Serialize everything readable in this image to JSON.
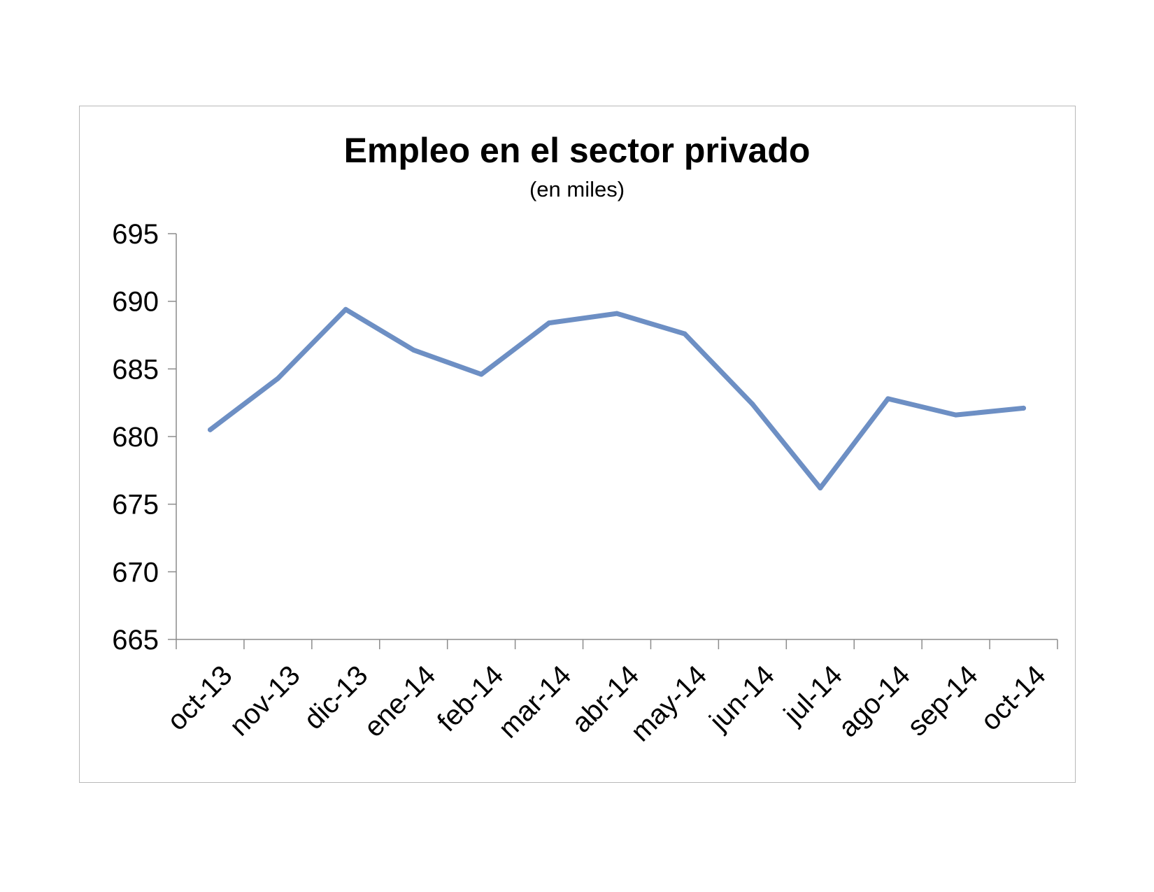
{
  "chart_data": {
    "type": "line",
    "title": "Empleo en el sector privado",
    "subtitle": "(en miles)",
    "xlabel": "",
    "ylabel": "",
    "categories": [
      "oct-13",
      "nov-13",
      "dic-13",
      "ene-14",
      "feb-14",
      "mar-14",
      "abr-14",
      "may-14",
      "jun-14",
      "jul-14",
      "ago-14",
      "sep-14",
      "oct-14"
    ],
    "series": [
      {
        "values": [
          680.5,
          684.3,
          689.4,
          686.4,
          684.6,
          688.4,
          689.1,
          687.6,
          682.4,
          676.2,
          682.8,
          681.6,
          682.1
        ],
        "color": "#6d8fc4"
      }
    ],
    "ylim": [
      665,
      695
    ],
    "yticks": [
      665,
      670,
      675,
      680,
      685,
      690,
      695
    ],
    "grid": false,
    "legend": "none"
  }
}
